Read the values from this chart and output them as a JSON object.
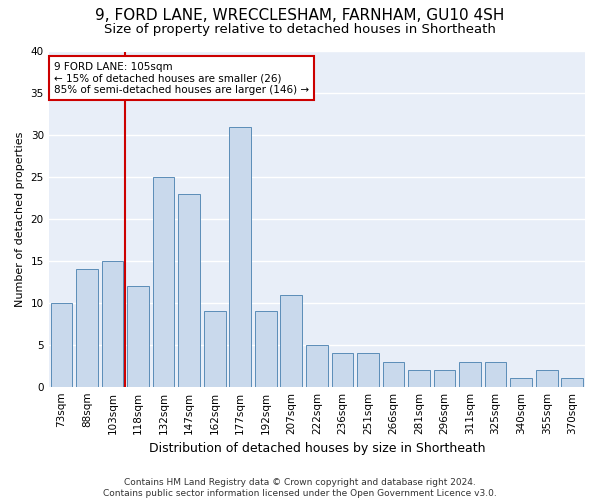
{
  "title1": "9, FORD LANE, WRECCLESHAM, FARNHAM, GU10 4SH",
  "title2": "Size of property relative to detached houses in Shortheath",
  "xlabel": "Distribution of detached houses by size in Shortheath",
  "ylabel": "Number of detached properties",
  "categories": [
    "73sqm",
    "88sqm",
    "103sqm",
    "118sqm",
    "132sqm",
    "147sqm",
    "162sqm",
    "177sqm",
    "192sqm",
    "207sqm",
    "222sqm",
    "236sqm",
    "251sqm",
    "266sqm",
    "281sqm",
    "296sqm",
    "311sqm",
    "325sqm",
    "340sqm",
    "355sqm",
    "370sqm"
  ],
  "values": [
    10,
    14,
    15,
    12,
    25,
    23,
    9,
    31,
    9,
    11,
    5,
    4,
    4,
    3,
    2,
    2,
    3,
    3,
    1,
    2,
    1
  ],
  "bar_color": "#c9d9ec",
  "bar_edge_color": "#5b8db8",
  "vline_color": "#cc0000",
  "annotation_text": "9 FORD LANE: 105sqm\n← 15% of detached houses are smaller (26)\n85% of semi-detached houses are larger (146) →",
  "annotation_box_color": "#ffffff",
  "annotation_box_edge": "#cc0000",
  "ylim": [
    0,
    40
  ],
  "yticks": [
    0,
    5,
    10,
    15,
    20,
    25,
    30,
    35,
    40
  ],
  "footnote": "Contains HM Land Registry data © Crown copyright and database right 2024.\nContains public sector information licensed under the Open Government Licence v3.0.",
  "bg_color": "#e8eef8",
  "grid_color": "#ffffff",
  "fig_bg": "#ffffff",
  "title1_fontsize": 11,
  "title2_fontsize": 9.5,
  "xlabel_fontsize": 9,
  "ylabel_fontsize": 8,
  "tick_fontsize": 7.5,
  "footnote_fontsize": 6.5
}
